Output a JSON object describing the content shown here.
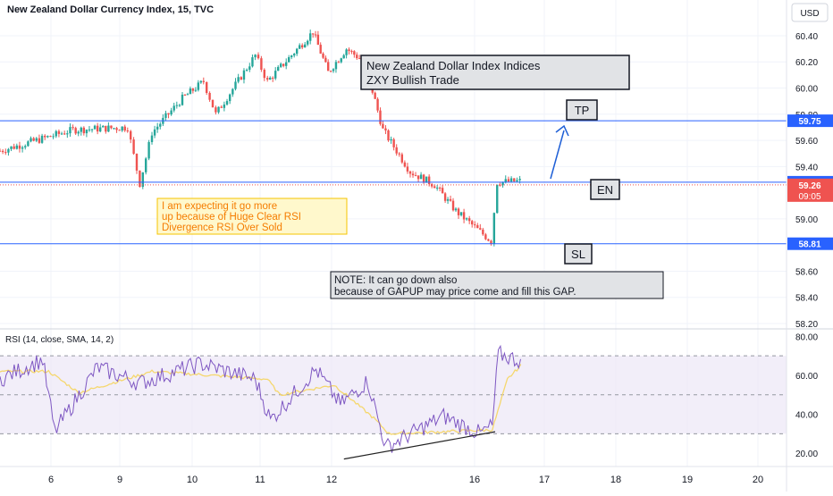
{
  "chart_data": [
    {
      "type": "candlestick",
      "title": "New Zealand Dollar Currency Index, 15, TVC",
      "currency": "USD",
      "x_ticks": [
        "6",
        "9",
        "10",
        "11",
        "12",
        "16",
        "17",
        "18",
        "19",
        "20"
      ],
      "y_ticks": [
        "60.40",
        "60.20",
        "60.00",
        "59.80",
        "59.60",
        "59.40",
        "59.00",
        "58.60",
        "58.40",
        "58.20"
      ],
      "ylim": [
        58.2,
        60.55
      ],
      "colors": {
        "up": "#26a69a",
        "down": "#ef5350",
        "level_line": "#2962ff",
        "arrow": "#1e5fd6"
      },
      "levels": [
        {
          "label": "TP",
          "value": 59.75,
          "price_tag": "59.75"
        },
        {
          "label": "EN",
          "value": 59.28,
          "price_tag": "59.28"
        },
        {
          "label": "SL",
          "value": 58.81,
          "price_tag": "58.81"
        }
      ],
      "last_price": {
        "value": 59.26,
        "tag": "59.26",
        "countdown": "09:05"
      },
      "segments": [
        {
          "x0": 0.0,
          "x1": 1.2,
          "y0": 59.52,
          "y1": 59.68
        },
        {
          "x0": 1.2,
          "x1": 2.1,
          "y0": 59.68,
          "y1": 59.7
        },
        {
          "x0": 2.1,
          "x1": 2.3,
          "y0": 59.7,
          "y1": 59.27
        },
        {
          "x0": 2.3,
          "x1": 2.5,
          "y0": 59.27,
          "y1": 59.66
        },
        {
          "x0": 2.5,
          "x1": 3.0,
          "y0": 59.66,
          "y1": 59.92
        },
        {
          "x0": 3.0,
          "x1": 3.35,
          "y0": 59.92,
          "y1": 60.05
        },
        {
          "x0": 3.35,
          "x1": 3.55,
          "y0": 60.05,
          "y1": 59.8
        },
        {
          "x0": 3.55,
          "x1": 4.2,
          "y0": 59.8,
          "y1": 60.25
        },
        {
          "x0": 4.2,
          "x1": 4.4,
          "y0": 60.25,
          "y1": 60.05
        },
        {
          "x0": 4.4,
          "x1": 5.15,
          "y0": 60.05,
          "y1": 60.43
        },
        {
          "x0": 5.15,
          "x1": 5.4,
          "y0": 60.43,
          "y1": 60.12
        },
        {
          "x0": 5.4,
          "x1": 5.7,
          "y0": 60.12,
          "y1": 60.3
        },
        {
          "x0": 5.7,
          "x1": 6.0,
          "y0": 60.3,
          "y1": 60.2
        },
        {
          "x0": 6.0,
          "x1": 6.3,
          "y0": 60.2,
          "y1": 59.68
        },
        {
          "x0": 6.3,
          "x1": 6.75,
          "y0": 59.68,
          "y1": 59.36
        },
        {
          "x0": 6.75,
          "x1": 7.15,
          "y0": 59.36,
          "y1": 59.26
        },
        {
          "x0": 7.15,
          "x1": 7.5,
          "y0": 59.26,
          "y1": 59.06
        },
        {
          "x0": 7.5,
          "x1": 8.08,
          "y0": 59.06,
          "y1": 58.83
        },
        {
          "x0": 8.08,
          "x1": 8.18,
          "y0": 58.83,
          "y1": 59.28
        },
        {
          "x0": 8.18,
          "x1": 8.6,
          "y0": 59.28,
          "y1": 59.29
        }
      ]
    },
    {
      "type": "line",
      "title": "RSI (14, close, SMA, 14, 2)",
      "y_ticks": [
        "80.00",
        "60.00",
        "40.00",
        "20.00"
      ],
      "ylim": [
        15,
        82
      ],
      "band": [
        30,
        70
      ],
      "middle": 50,
      "colors": {
        "rsi": "#7e57c2",
        "sma": "#f5d76e",
        "band": "#ede7f6",
        "divergence": "#222222"
      },
      "rsi_segments": [
        {
          "x0": 0.0,
          "x1": 0.7,
          "y0": 58,
          "y1": 68
        },
        {
          "x0": 0.7,
          "x1": 0.9,
          "y0": 68,
          "y1": 31
        },
        {
          "x0": 0.9,
          "x1": 1.6,
          "y0": 31,
          "y1": 64
        },
        {
          "x0": 1.6,
          "x1": 2.3,
          "y0": 64,
          "y1": 56
        },
        {
          "x0": 2.3,
          "x1": 3.3,
          "y0": 56,
          "y1": 66
        },
        {
          "x0": 3.3,
          "x1": 4.2,
          "y0": 66,
          "y1": 58
        },
        {
          "x0": 4.2,
          "x1": 4.45,
          "y0": 58,
          "y1": 37
        },
        {
          "x0": 4.45,
          "x1": 5.2,
          "y0": 37,
          "y1": 63
        },
        {
          "x0": 5.2,
          "x1": 5.6,
          "y0": 63,
          "y1": 45
        },
        {
          "x0": 5.6,
          "x1": 6.05,
          "y0": 45,
          "y1": 57
        },
        {
          "x0": 6.05,
          "x1": 6.35,
          "y0": 57,
          "y1": 23
        },
        {
          "x0": 6.35,
          "x1": 7.3,
          "y0": 23,
          "y1": 39
        },
        {
          "x0": 7.3,
          "x1": 7.9,
          "y0": 39,
          "y1": 30
        },
        {
          "x0": 7.9,
          "x1": 8.1,
          "y0": 30,
          "y1": 34
        },
        {
          "x0": 8.1,
          "x1": 8.2,
          "y0": 34,
          "y1": 71
        },
        {
          "x0": 8.2,
          "x1": 8.6,
          "y0": 71,
          "y1": 67
        }
      ],
      "sma_segments": [
        {
          "x0": 0.0,
          "x1": 0.8,
          "y0": 62,
          "y1": 62
        },
        {
          "x0": 0.8,
          "x1": 1.3,
          "y0": 62,
          "y1": 51
        },
        {
          "x0": 1.3,
          "x1": 2.5,
          "y0": 51,
          "y1": 62
        },
        {
          "x0": 2.5,
          "x1": 4.4,
          "y0": 62,
          "y1": 58
        },
        {
          "x0": 4.4,
          "x1": 4.6,
          "y0": 58,
          "y1": 50
        },
        {
          "x0": 4.6,
          "x1": 5.5,
          "y0": 50,
          "y1": 55
        },
        {
          "x0": 5.5,
          "x1": 6.15,
          "y0": 55,
          "y1": 38
        },
        {
          "x0": 6.15,
          "x1": 6.4,
          "y0": 38,
          "y1": 30
        },
        {
          "x0": 6.4,
          "x1": 8.1,
          "y0": 30,
          "y1": 32
        },
        {
          "x0": 8.1,
          "x1": 8.35,
          "y0": 32,
          "y1": 58
        },
        {
          "x0": 8.35,
          "x1": 8.6,
          "y0": 58,
          "y1": 66
        }
      ],
      "divergence_line": {
        "x0": 6.1,
        "x1": 8.0,
        "y0": 17,
        "y1": 31
      }
    }
  ],
  "annotations": {
    "title_box_line1": "New Zealand Dollar Index Indices",
    "title_box_line2": "ZXY Bullish Trade",
    "tp_label": "TP",
    "en_label": "EN",
    "sl_label": "SL",
    "note_line1": "I am expecting it go more",
    "note_line2": "up because of Huge Clear RSI",
    "note_line3": "Divergence RSI Over Sold",
    "warn_line1": "NOTE: It can go down also",
    "warn_line2": "because of GAPUP may price come and fill this GAP."
  }
}
